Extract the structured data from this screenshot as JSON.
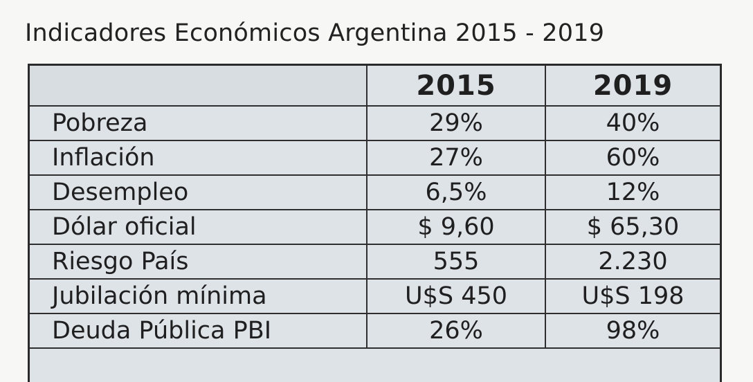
{
  "title": "Indicadores Económicos Argentina 2015 - 2019",
  "table": {
    "columns": [
      "",
      "2015",
      "2019"
    ],
    "rows": [
      {
        "label": "Pobreza",
        "v2015": "29%",
        "v2019": "40%"
      },
      {
        "label": "Inflación",
        "v2015": "27%",
        "v2019": "60%"
      },
      {
        "label": "Desempleo",
        "v2015": "6,5%",
        "v2019": "12%"
      },
      {
        "label": "Dólar oficial",
        "v2015": "$ 9,60",
        "v2019": "$ 65,30"
      },
      {
        "label": "Riesgo País",
        "v2015": "555",
        "v2019": "2.230"
      },
      {
        "label": "Jubilación mínima",
        "v2015": "U$S 450",
        "v2019": "U$S 198"
      },
      {
        "label": "Deuda Pública PBI",
        "v2015": "26%",
        "v2019": "98%"
      }
    ]
  }
}
